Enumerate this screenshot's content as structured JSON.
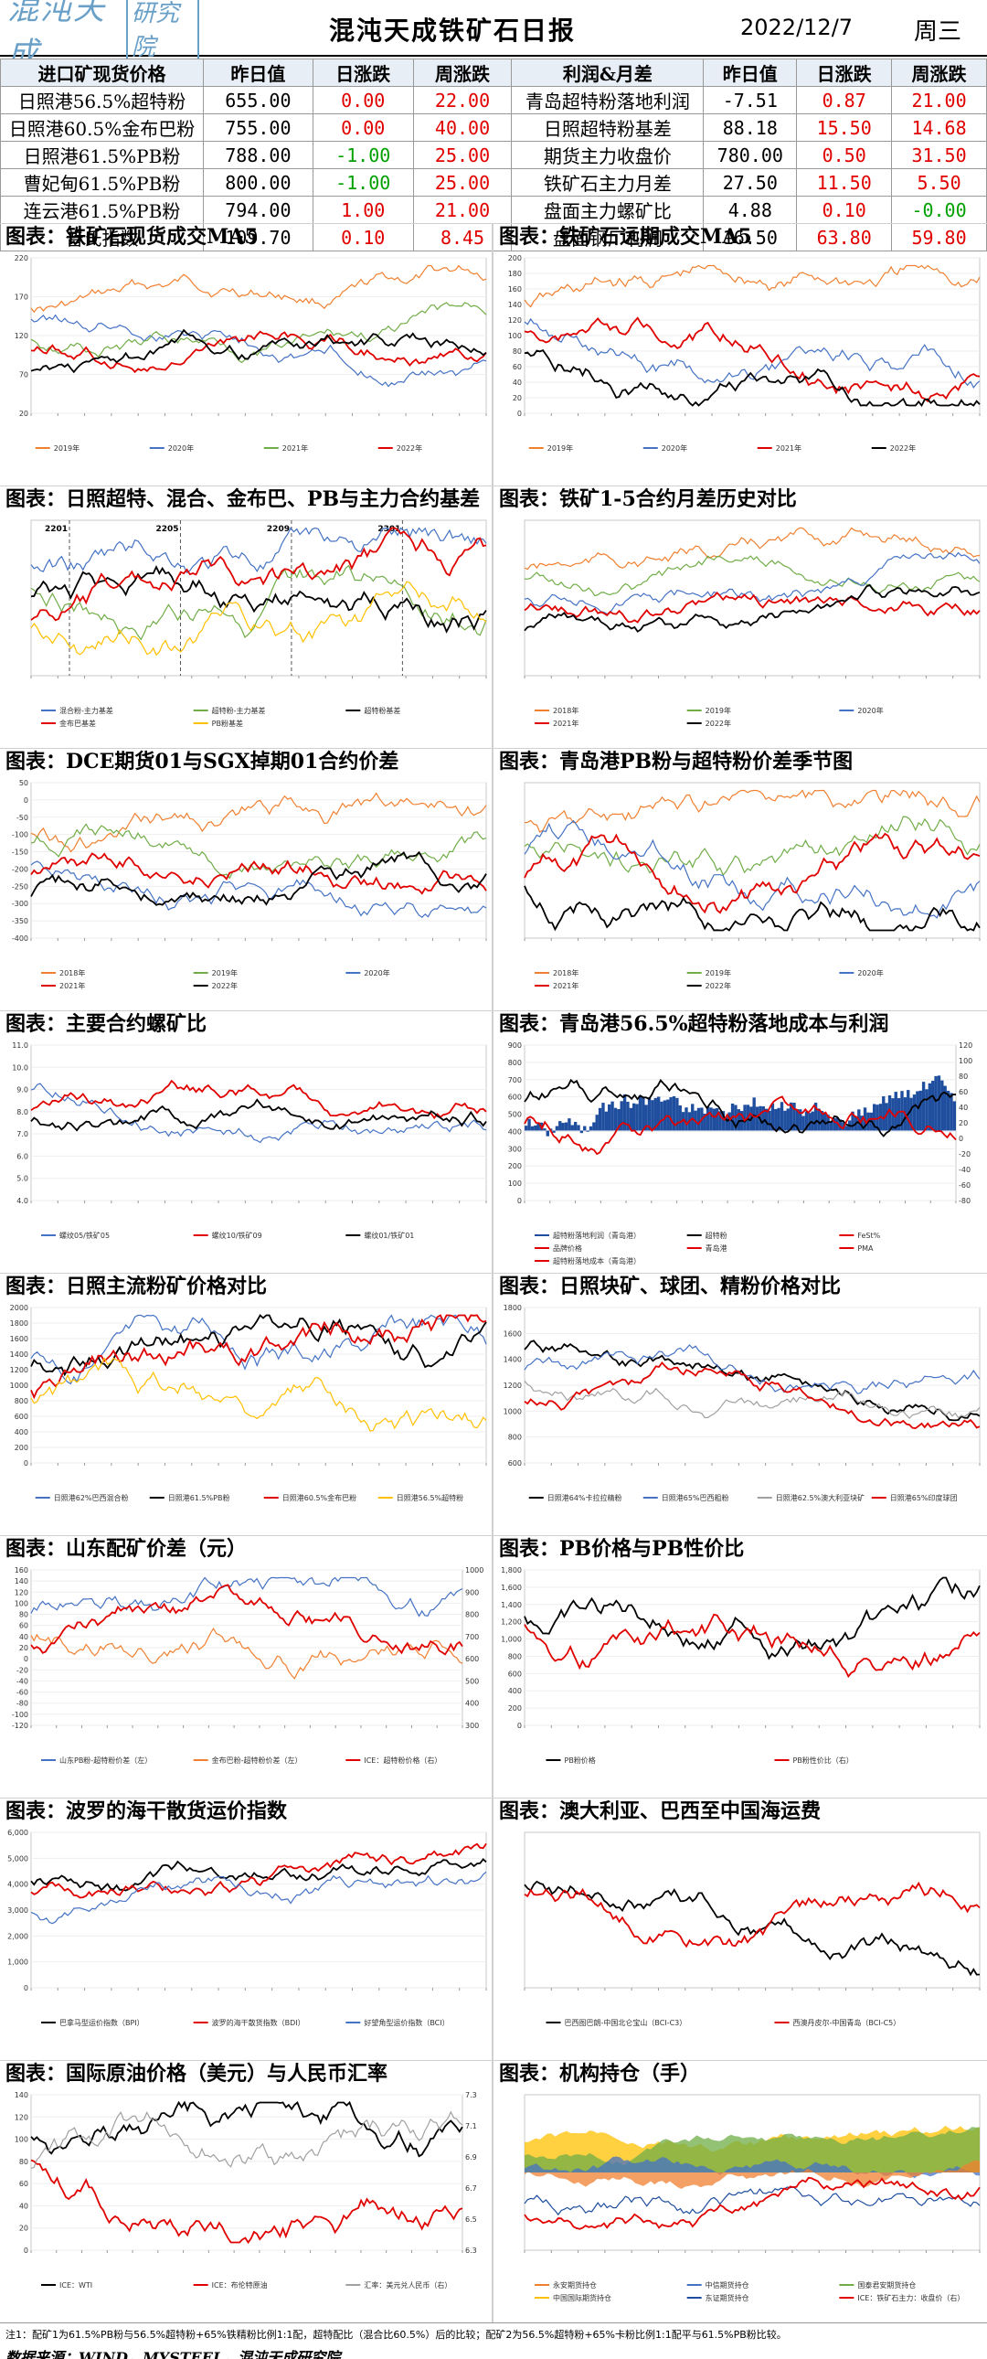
{
  "header": {
    "logo_text": "混沌天成",
    "logo_box": "研究院",
    "title": "混沌天成铁矿石日报",
    "date": "2022/12/7",
    "weekday": "周三"
  },
  "table": {
    "left_headers": [
      "进口矿现货价格",
      "昨日值",
      "日涨跌",
      "周涨跌"
    ],
    "right_headers": [
      "利润&月差",
      "昨日值",
      "日涨跌",
      "周涨跌"
    ],
    "left_rows": [
      {
        "name": "日照港56.5%超特粉",
        "value": "655.00",
        "day": "0.00",
        "week": "22.00",
        "day_color": "red",
        "week_color": "red"
      },
      {
        "name": "日照港60.5%金布巴粉",
        "value": "755.00",
        "day": "0.00",
        "week": "40.00",
        "day_color": "red",
        "week_color": "red"
      },
      {
        "name": "日照港61.5%PB粉",
        "value": "788.00",
        "day": "-1.00",
        "week": "25.00",
        "day_color": "green",
        "week_color": "red"
      },
      {
        "name": "曹妃甸61.5%PB粉",
        "value": "800.00",
        "day": "-1.00",
        "week": "25.00",
        "day_color": "green",
        "week_color": "red"
      },
      {
        "name": "连云港61.5%PB粉",
        "value": "794.00",
        "day": "1.00",
        "week": "21.00",
        "day_color": "red",
        "week_color": "red"
      },
      {
        "name": "普氏指数",
        "value": "109.70",
        "day": "0.10",
        "week": "8.45",
        "day_color": "red",
        "week_color": "red"
      }
    ],
    "right_rows": [
      {
        "name": "青岛超特粉落地利润",
        "value": "-7.51",
        "day": "0.87",
        "week": "21.00",
        "day_color": "red",
        "week_color": "red"
      },
      {
        "name": "日照超特粉基差",
        "value": "88.18",
        "day": "15.50",
        "week": "14.68",
        "day_color": "red",
        "week_color": "red"
      },
      {
        "name": "期货主力收盘价",
        "value": "780.00",
        "day": "0.50",
        "week": "31.50",
        "day_color": "red",
        "week_color": "red"
      },
      {
        "name": "铁矿石主力月差",
        "value": "27.50",
        "day": "11.50",
        "week": "5.50",
        "day_color": "red",
        "week_color": "red"
      },
      {
        "name": "盘面主力螺矿比",
        "value": "4.88",
        "day": "0.10",
        "week": "-0.00",
        "day_color": "red",
        "week_color": "green"
      },
      {
        "name": "盘面钢厂利润",
        "value": "16.50",
        "day": "63.80",
        "week": "59.80",
        "day_color": "red",
        "week_color": "red"
      }
    ]
  },
  "charts": [
    {
      "title": "图表：铁矿石现货成交MA5",
      "yticks": [
        "220",
        "170",
        "120",
        "70",
        "20"
      ],
      "legend": [
        "2019年",
        "2020年",
        "2021年",
        "2022年"
      ],
      "colors": [
        "#f08030",
        "#4472c4",
        "#70ad47",
        "#e00000",
        "#000000"
      ]
    },
    {
      "title": "图表：铁矿石远期成交MA5",
      "yticks": [
        "200",
        "180",
        "160",
        "140",
        "120",
        "100",
        "80",
        "60",
        "40",
        "20",
        "0"
      ],
      "legend": [
        "2019年",
        "2020年",
        "2021年",
        "2022年"
      ],
      "colors": [
        "#f08030",
        "#4472c4",
        "#e00000",
        "#000000"
      ]
    },
    {
      "title": "图表：日照超特、混合、金布巴、PB与主力合约基差",
      "yticks": [],
      "annotations": [
        "2201",
        "2205",
        "2209",
        "2301"
      ],
      "legend": [
        "混合粉-主力基差",
        "超特粉-主力基差",
        "超特粉基差",
        "金布巴基差",
        "PB粉基差"
      ],
      "colors": [
        "#4472c4",
        "#70ad47",
        "#000000",
        "#e00000",
        "#ffc000"
      ]
    },
    {
      "title": "图表：铁矿1-5合约月差历史对比",
      "yticks": [],
      "legend": [
        "2018年",
        "2019年",
        "2020年",
        "2021年",
        "2022年"
      ],
      "colors": [
        "#f08030",
        "#70ad47",
        "#4472c4",
        "#e00000",
        "#000000"
      ]
    },
    {
      "title": "图表：DCE期货01与SGX掉期01合约价差",
      "yticks": [
        "50",
        "0",
        "-50",
        "-100",
        "-150",
        "-200",
        "-250",
        "-300",
        "-350",
        "-400"
      ],
      "legend": [
        "2018年",
        "2019年",
        "2020年",
        "2021年",
        "2022年"
      ],
      "colors": [
        "#f08030",
        "#70ad47",
        "#4472c4",
        "#e00000",
        "#000000"
      ]
    },
    {
      "title": "图表：青岛港PB粉与超特粉价差季节图",
      "yticks": [],
      "legend": [
        "2018年",
        "2019年",
        "2020年",
        "2021年",
        "2022年"
      ],
      "colors": [
        "#f08030",
        "#70ad47",
        "#4472c4",
        "#e00000",
        "#000000"
      ]
    },
    {
      "title": "图表：主要合约螺矿比",
      "yticks": [
        "11.0",
        "10.0",
        "9.0",
        "8.0",
        "7.0",
        "6.0",
        "5.0",
        "4.0"
      ],
      "legend": [
        "螺纹05/铁矿05",
        "螺纹10/铁矿09",
        "螺纹01/铁矿01"
      ],
      "colors": [
        "#4472c4",
        "#e00000",
        "#000000"
      ]
    },
    {
      "title": "图表：青岛港56.5%超特粉落地成本与利润",
      "yticks": [
        "900",
        "800",
        "700",
        "600",
        "500",
        "400",
        "300",
        "200",
        "100",
        "0"
      ],
      "yticks_right": [
        "120",
        "100",
        "80",
        "60",
        "40",
        "20",
        "0",
        "-20",
        "-40",
        "-60",
        "-80"
      ],
      "legend": [
        "超特粉落地利润（青岛港）",
        "超特粉",
        "FeSt%",
        "品牌价格",
        "青岛港",
        "PMA",
        "超特粉落地成本（青岛港）"
      ],
      "colors": [
        "#1f4e9e",
        "#000000",
        "#e00000"
      ]
    },
    {
      "title": "图表：日照主流粉矿价格对比",
      "yticks": [
        "2000",
        "1800",
        "1600",
        "1400",
        "1200",
        "1000",
        "800",
        "600",
        "400",
        "200",
        "0"
      ],
      "legend": [
        "日照港62%巴西混合粉",
        "日照港61.5%PB粉",
        "日照港60.5%金布巴粉",
        "日照港56.5%超特粉"
      ],
      "colors": [
        "#4472c4",
        "#000000",
        "#e00000",
        "#ffc000"
      ]
    },
    {
      "title": "图表：日照块矿、球团、精粉价格对比",
      "yticks": [
        "1800",
        "1600",
        "1400",
        "1200",
        "1000",
        "800",
        "600"
      ],
      "legend": [
        "日照港64%卡拉拉精粉",
        "日照港65%巴西粗粉",
        "日照港62.5%澳大利亚块矿",
        "日照港65%印度球团"
      ],
      "colors": [
        "#000000",
        "#4472c4",
        "#a0a0a0",
        "#e00000"
      ]
    },
    {
      "title": "图表：山东配矿价差（元）",
      "yticks": [
        "160",
        "140",
        "120",
        "100",
        "80",
        "60",
        "40",
        "20",
        "0",
        "-20",
        "-40",
        "-60",
        "-80",
        "-100",
        "-120"
      ],
      "yticks_right": [
        "1000",
        "900",
        "800",
        "700",
        "600",
        "500",
        "400",
        "300"
      ],
      "legend": [
        "山东PB粉-超特粉价差（左）",
        "金布巴粉-超特粉价差（左）",
        "ICE：超特粉价格（右）"
      ],
      "colors": [
        "#4472c4",
        "#f08030",
        "#e00000"
      ]
    },
    {
      "title": "图表：PB价格与PB性价比",
      "yticks": [
        "1,800",
        "1,600",
        "1,400",
        "1,200",
        "1,000",
        "800",
        "600",
        "400",
        "200",
        "0"
      ],
      "legend": [
        "PB粉价格",
        "PB粉性价比（右）"
      ],
      "colors": [
        "#000000",
        "#e00000"
      ]
    },
    {
      "title": "图表：波罗的海干散货运价指数",
      "yticks": [
        "6,000",
        "5,000",
        "4,000",
        "3,000",
        "2,000",
        "1,000",
        "0"
      ],
      "legend": [
        "巴拿马型运价指数（BPI）",
        "波罗的海干散货指数（BDI）",
        "好望角型运价指数（BCI）"
      ],
      "colors": [
        "#000000",
        "#e00000",
        "#4472c4"
      ]
    },
    {
      "title": "图表：澳大利亚、巴西至中国海运费",
      "yticks": [],
      "legend": [
        "巴西图巴朗-中国北仑宝山（BCI-C3）",
        "西澳丹皮尔-中国青岛（BCI-C5）"
      ],
      "colors": [
        "#000000",
        "#e00000"
      ]
    },
    {
      "title": "图表：国际原油价格（美元）与人民币汇率",
      "yticks": [
        "140",
        "120",
        "100",
        "80",
        "60",
        "40",
        "20",
        "0"
      ],
      "yticks_right": [
        "7.3",
        "7.1",
        "6.9",
        "6.7",
        "6.5",
        "6.3"
      ],
      "legend": [
        "ICE：WTI",
        "ICE：布伦特原油",
        "汇率：美元兑人民币（右）"
      ],
      "colors": [
        "#000000",
        "#e00000",
        "#a0a0a0"
      ]
    },
    {
      "title": "图表：机构持仓（手）",
      "yticks": [],
      "legend": [
        "永安期货持仓",
        "中信期货持仓",
        "国泰君安期货持仓",
        "中国国际期货持仓",
        "东证期货持仓",
        "ICE：铁矿石主力：收盘价（右）"
      ],
      "colors": [
        "#f08030",
        "#4472c4",
        "#70ad47",
        "#ffc000",
        "#1f4e9e",
        "#e00000"
      ]
    }
  ],
  "footer": {
    "note": "注1：配矿1为61.5%PB粉与56.5%超特粉+65%铁精粉比例1:1配，超特配比（混合比60.5%）后的比较；配矿2为56.5%超特粉+65%卡粉比例1:1配平与61.5%PB粉比较。",
    "source": "数据来源：WIND，MYSTEEL，混沌天成研究院"
  }
}
